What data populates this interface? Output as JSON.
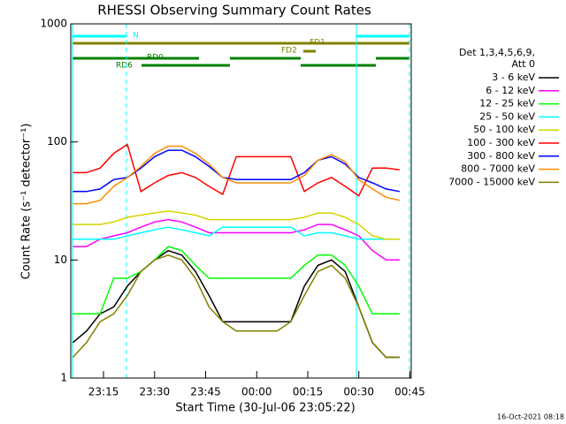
{
  "chart_data": {
    "type": "line",
    "title": "RHESSI Observing Summary Count Rates",
    "x_label": "Start Time (30-Jul-06 23:05:22)",
    "y_label": "Count Rate (s⁻¹ detector⁻¹)",
    "legend_title": [
      "Det 1,3,4,5,6,9,",
      "Att 0"
    ],
    "flags": [
      "N",
      "FD1",
      "FD2",
      "RD0",
      "RD6"
    ],
    "footer": "16-Oct-2021 08:18",
    "log_y": true,
    "legend": "right",
    "xlim": [
      5.37,
      105.4
    ],
    "xticks": [
      {
        "value": 15,
        "label": "23:15"
      },
      {
        "value": 30,
        "label": "23:30"
      },
      {
        "value": 45,
        "label": "23:45"
      },
      {
        "value": 60,
        "label": "00:00"
      },
      {
        "value": 75,
        "label": "00:15"
      },
      {
        "value": 90,
        "label": "00:30"
      },
      {
        "value": 105,
        "label": "00:45"
      }
    ],
    "ylim": [
      1,
      1000
    ],
    "yticks": [
      1,
      10,
      100,
      1000
    ],
    "x": [
      6,
      10,
      14,
      18,
      22,
      26,
      30,
      34,
      38,
      42,
      46,
      50,
      54,
      58,
      62,
      66,
      70,
      74,
      78,
      82,
      86,
      90,
      94,
      98,
      102
    ],
    "series": [
      {
        "name": "3 - 6 keV",
        "color": "#000000",
        "values": [
          2,
          2.5,
          3.5,
          4,
          6,
          8,
          10,
          12,
          11,
          8,
          5,
          3,
          3,
          3,
          3,
          3,
          3,
          6,
          9,
          10,
          8,
          4,
          2,
          1.5,
          1.5
        ]
      },
      {
        "name": "6 - 12 keV",
        "color": "#ff00ff",
        "values": [
          13,
          13,
          15,
          16,
          17,
          19,
          21,
          22,
          21,
          19,
          17,
          17,
          17,
          17,
          17,
          17,
          17,
          18,
          20,
          20,
          18,
          16,
          12,
          10,
          10
        ]
      },
      {
        "name": "12 - 25 keV",
        "color": "#00ff00",
        "values": [
          3.5,
          3.5,
          3.5,
          7,
          7,
          8,
          10,
          13,
          12,
          9,
          7,
          7,
          7,
          7,
          7,
          7,
          7,
          9,
          11,
          11,
          9,
          6,
          3.5,
          3.5,
          3.5
        ]
      },
      {
        "name": "25 - 50 keV",
        "color": "#00ffff",
        "values": [
          15,
          15,
          15,
          15,
          16,
          17,
          18,
          19,
          18,
          17,
          16,
          19,
          19,
          19,
          19,
          19,
          19,
          16,
          17,
          17,
          16,
          15,
          15,
          15,
          15
        ]
      },
      {
        "name": "50 - 100 keV",
        "color": "#d4d400",
        "values": [
          20,
          20,
          20,
          21,
          23,
          24,
          25,
          26,
          25,
          24,
          22,
          22,
          22,
          22,
          22,
          22,
          22,
          23,
          25,
          25,
          23,
          20,
          16,
          15,
          15
        ]
      },
      {
        "name": "100 - 300 keV",
        "color": "#ff0000",
        "values": [
          55,
          55,
          60,
          80,
          95,
          38,
          45,
          52,
          55,
          50,
          42,
          36,
          75,
          75,
          75,
          75,
          75,
          38,
          45,
          50,
          42,
          35,
          60,
          60,
          58
        ]
      },
      {
        "name": "300 - 800 keV",
        "color": "#0000ff",
        "values": [
          38,
          38,
          40,
          48,
          50,
          60,
          75,
          85,
          85,
          75,
          62,
          50,
          48,
          48,
          48,
          48,
          48,
          55,
          70,
          75,
          65,
          50,
          45,
          40,
          38
        ]
      },
      {
        "name": "800 - 7000 keV",
        "color": "#ff8c00",
        "values": [
          30,
          30,
          32,
          42,
          50,
          62,
          80,
          92,
          92,
          80,
          65,
          50,
          45,
          45,
          45,
          45,
          45,
          52,
          70,
          78,
          68,
          48,
          40,
          34,
          32
        ]
      },
      {
        "name": "7000 - 15000 keV",
        "color": "#808000",
        "values": [
          1.5,
          2,
          3,
          3.5,
          5,
          8,
          10,
          11,
          10,
          7,
          4,
          3,
          2.5,
          2.5,
          2.5,
          2.5,
          3,
          5,
          8,
          9,
          7,
          4,
          2,
          1.5,
          1.5
        ]
      }
    ]
  }
}
